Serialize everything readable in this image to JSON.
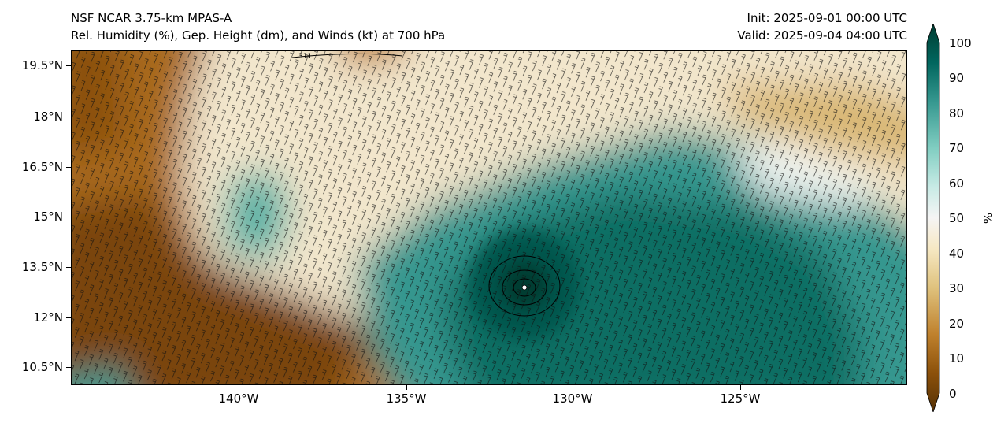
{
  "title": {
    "line1": "NSF NCAR 3.75-km MPAS-A",
    "line2": "Rel. Humidity (%), Gep. Height (dm), and Winds (kt) at 700 hPa",
    "init": "Init: 2025-09-01 00:00 UTC",
    "valid": "Valid: 2025-09-04 04:00 UTC"
  },
  "map": {
    "lat_labels": [
      "19.5°N",
      "18°N",
      "16.5°N",
      "15°N",
      "13.5°N",
      "12°N",
      "10.5°N"
    ],
    "lon_labels": [
      "140°W",
      "135°W",
      "130°W",
      "125°W"
    ],
    "lat_range": [
      10.0,
      20.0
    ],
    "lon_range": [
      -145.3,
      -120.2
    ],
    "cyclone_center": {
      "lon": -131.4,
      "lat": 12.9
    },
    "contour_label": "311"
  },
  "colorbar": {
    "unit": "%",
    "ticks": [
      "100",
      "90",
      "80",
      "70",
      "60",
      "50",
      "40",
      "30",
      "20",
      "10",
      "0"
    ],
    "range": [
      0,
      100
    ],
    "colors": [
      "#543005",
      "#8c510a",
      "#bf812d",
      "#dfc27d",
      "#f6e8c3",
      "#f5f5f5",
      "#c7eae5",
      "#80cdc1",
      "#35978f",
      "#01665e",
      "#003c30"
    ]
  }
}
